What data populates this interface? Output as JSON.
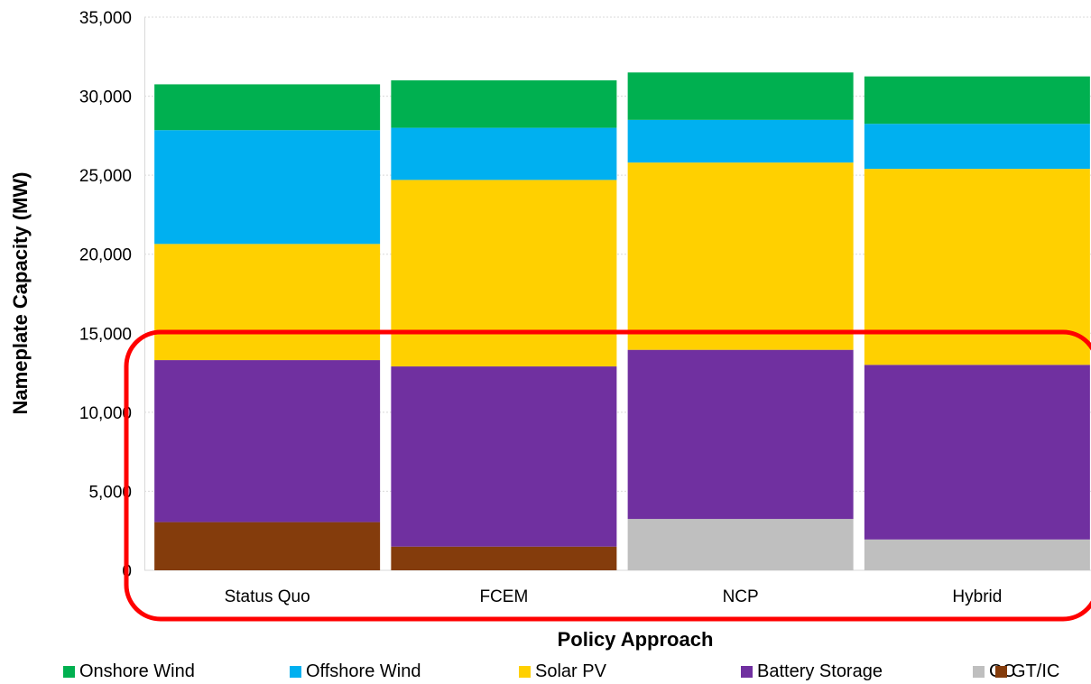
{
  "chart_data": {
    "type": "bar",
    "stacked": true,
    "categories": [
      "Status Quo",
      "FCEM",
      "NCP",
      "Hybrid"
    ],
    "series": [
      {
        "name": "GT/IC",
        "color": "#843C0C",
        "values": [
          3050,
          1500,
          0,
          0
        ]
      },
      {
        "name": "CC",
        "color": "#BFBFBF",
        "values": [
          0,
          0,
          3250,
          1950
        ]
      },
      {
        "name": "Battery Storage",
        "color": "#7030A0",
        "values": [
          10250,
          11400,
          10700,
          11050
        ]
      },
      {
        "name": "Solar PV",
        "color": "#FFD000",
        "values": [
          7350,
          11800,
          11850,
          12400
        ]
      },
      {
        "name": "Offshore Wind",
        "color": "#00B0F0",
        "values": [
          7200,
          3300,
          2700,
          2850
        ]
      },
      {
        "name": "Onshore Wind",
        "color": "#00B050",
        "values": [
          2900,
          3000,
          3000,
          3000
        ]
      }
    ],
    "legend_order": [
      "Onshore Wind",
      "Offshore Wind",
      "Solar PV",
      "Battery Storage",
      "CC",
      "GT/IC"
    ],
    "xlabel": "Policy Approach",
    "ylabel": "Nameplate Capacity (MW)",
    "ylim": [
      0,
      35000
    ],
    "yticks": [
      "0",
      "5,000",
      "10,000",
      "15,000",
      "20,000",
      "25,000",
      "30,000",
      "35,000"
    ],
    "grid": true,
    "legend_position": "bottom",
    "annotation": {
      "shape": "rounded-rectangle",
      "color": "#FF0000",
      "highlights": "lower part of all bars (Battery Storage, CC, GT/IC) and category labels"
    }
  }
}
